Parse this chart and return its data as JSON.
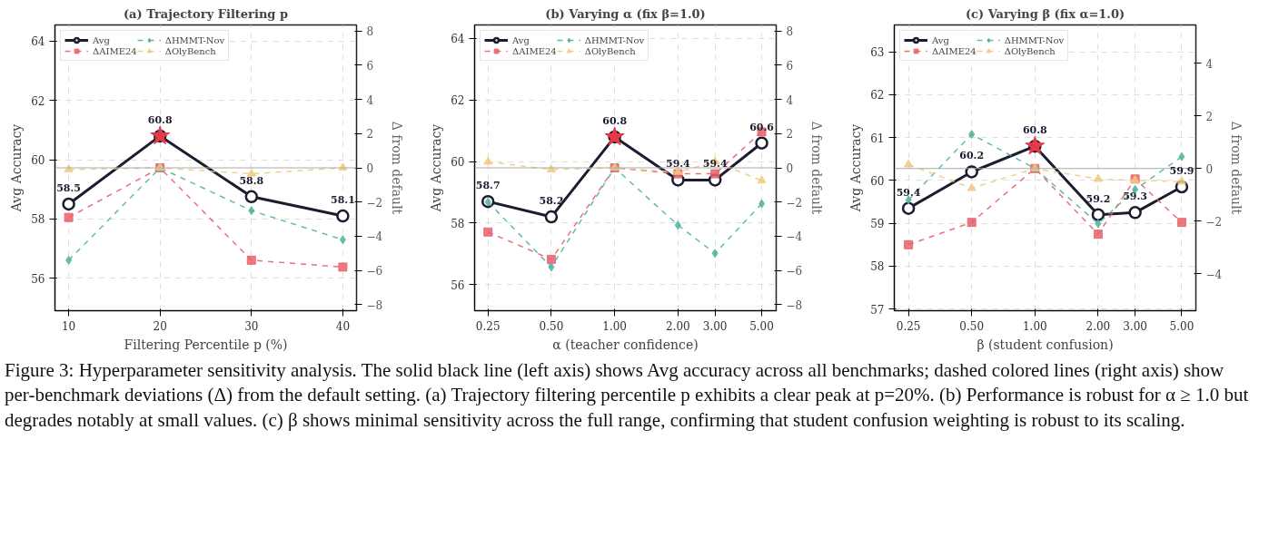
{
  "chart_data": [
    {
      "type": "line",
      "title": "(a) Trajectory Filtering p",
      "xlabel": "Filtering Percentile p (%)",
      "ylabel": "Avg Accuracy",
      "y2label": "Δ from default",
      "x": [
        10,
        20,
        30,
        40
      ],
      "xlim": [
        8.5,
        41.5
      ],
      "xticks": [
        10,
        20,
        30,
        40
      ],
      "ylim": [
        54.9,
        64.55
      ],
      "yticks": [
        56,
        58,
        60,
        62,
        64
      ],
      "y2lim": [
        -8.35,
        8.35
      ],
      "y2ticks": [
        -8,
        -6,
        -4,
        -2,
        0,
        2,
        4,
        6,
        8
      ],
      "grid": true,
      "legend": "top left",
      "ref_lines": [
        {
          "axis": "y2",
          "value": 0,
          "color": "#aaaaaa"
        }
      ],
      "series": [
        {
          "name": "Avg",
          "color": "#1c1c30",
          "values": [
            58.5,
            60.8,
            58.75,
            58.1
          ],
          "marker": "circle",
          "line_style": "solid",
          "value_labels": [
            "58.5",
            "60.8",
            "58.8",
            "58.1"
          ]
        },
        {
          "name": "ΔAIME24",
          "color": "#e8606c",
          "values": [
            -2.9,
            0,
            -5.4,
            -5.8
          ],
          "axis": "y2",
          "marker": "square",
          "line_style": "dashed"
        },
        {
          "name": "ΔHMMT-Nov",
          "color": "#52b3a0",
          "values": [
            -5.4,
            0,
            -2.5,
            -4.2
          ],
          "axis": "y2",
          "marker": "diamond",
          "line_style": "dashed"
        },
        {
          "name": "ΔOlyBench",
          "color": "#eecb7f",
          "values": [
            -0.1,
            0,
            -0.35,
            0
          ],
          "axis": "y2",
          "marker": "triangle",
          "line_style": "dashed"
        },
        {
          "type": "scatter",
          "color": "#e63946",
          "values": [
            null,
            60.8,
            null,
            null
          ],
          "marker": "star"
        }
      ],
      "annotations": [
        "Figure 3: Hyperparameter sensitivity analysis. The solid black line (left axis) shows Avg accuracy across all benchmarks; dashed colored lines (right axis) show per-benchmark deviations (Δ) from the default setting. (a) Trajectory filtering percentile p exhibits a clear peak at p=20%. (b) Performance is robust for α ≥ 1.0 but degrades notably at small values. (c) β shows minimal sensitivity across the full range, confirming that student confusion weighting is robust to its scaling."
      ]
    },
    {
      "type": "line",
      "title": "(b) Varying α (fix β=1.0)",
      "xlabel": "α (teacher confidence)",
      "ylabel": "Avg Accuracy",
      "y2label": "Δ from default",
      "log": "x",
      "x": [
        0.25,
        0.5,
        1,
        2,
        3,
        5
      ],
      "xlim": [
        0.216,
        5.86
      ],
      "xticks": [
        {
          "value": 0.25,
          "label": "0.25"
        },
        {
          "value": 0.5,
          "label": "0.50"
        },
        {
          "value": 1,
          "label": "1.00"
        },
        {
          "value": 2,
          "label": "2.00"
        },
        {
          "value": 3,
          "label": "3.00"
        },
        {
          "value": 5,
          "label": "5.00"
        }
      ],
      "ylim": [
        55.15,
        64.44
      ],
      "yticks": [
        56,
        58,
        60,
        62,
        64
      ],
      "y2lim": [
        -8.35,
        8.35
      ],
      "y2ticks": [
        -8,
        -6,
        -4,
        -2,
        0,
        2,
        4,
        6,
        8
      ],
      "grid": true,
      "legend": "top left",
      "ref_lines": [
        {
          "axis": "y2",
          "value": 0,
          "color": "#aaaaaa"
        }
      ],
      "series": [
        {
          "name": "Avg",
          "color": "#1c1c30",
          "values": [
            58.7,
            58.2,
            60.8,
            59.4,
            59.4,
            60.6
          ],
          "marker": "circle",
          "line_style": "solid",
          "value_labels": [
            "58.7",
            "58.2",
            "60.8",
            "59.4",
            "59.4",
            "60.6"
          ]
        },
        {
          "name": "ΔAIME24",
          "color": "#e8606c",
          "values": [
            -3.75,
            -5.35,
            0,
            -0.35,
            -0.35,
            2.1
          ],
          "axis": "y2",
          "marker": "square",
          "line_style": "dashed"
        },
        {
          "name": "ΔHMMT-Nov",
          "color": "#52b3a0",
          "values": [
            -2.0,
            -5.8,
            0,
            -3.35,
            -5.0,
            -2.1
          ],
          "axis": "y2",
          "marker": "diamond",
          "line_style": "dashed"
        },
        {
          "name": "ΔOlyBench",
          "color": "#eecb7f",
          "values": [
            0.35,
            -0.1,
            0,
            -0.25,
            0.35,
            -0.75
          ],
          "axis": "y2",
          "marker": "triangle",
          "line_style": "dashed"
        },
        {
          "type": "scatter",
          "color": "#e63946",
          "values": [
            null,
            null,
            60.8,
            null,
            null,
            null
          ],
          "marker": "star"
        }
      ]
    },
    {
      "type": "line",
      "title": "(c) Varying β (fix α=1.0)",
      "xlabel": "β (student confusion)",
      "ylabel": "Avg Accuracy",
      "y2label": "Δ from default",
      "log": "x",
      "x": [
        0.25,
        0.5,
        1,
        2,
        3,
        5
      ],
      "xlim": [
        0.214,
        5.84
      ],
      "xticks": [
        {
          "value": 0.25,
          "label": "0.25"
        },
        {
          "value": 0.5,
          "label": "0.50"
        },
        {
          "value": 1,
          "label": "1.00"
        },
        {
          "value": 2,
          "label": "2.00"
        },
        {
          "value": 3,
          "label": "3.00"
        },
        {
          "value": 5,
          "label": "5.00"
        }
      ],
      "ylim": [
        56.96,
        63.63
      ],
      "yticks": [
        57,
        58,
        59,
        60,
        61,
        62,
        63
      ],
      "y2lim": [
        -5.41,
        5.46
      ],
      "y2ticks": [
        -4,
        -2,
        0,
        2,
        4
      ],
      "grid": true,
      "legend": "top left",
      "ref_lines": [
        {
          "axis": "y2",
          "value": 0,
          "color": "#aaaaaa"
        }
      ],
      "series": [
        {
          "name": "Avg",
          "color": "#1c1c30",
          "values": [
            59.35,
            60.2,
            60.8,
            59.2,
            59.25,
            59.85
          ],
          "marker": "circle",
          "line_style": "solid",
          "value_labels": [
            "59.4",
            "60.2",
            "60.8",
            "59.2",
            "59.3",
            "59.9"
          ]
        },
        {
          "name": "ΔAIME24",
          "color": "#e8606c",
          "values": [
            -2.9,
            -2.05,
            0,
            -2.5,
            -0.4,
            -2.05
          ],
          "axis": "y2",
          "marker": "square",
          "line_style": "dashed"
        },
        {
          "name": "ΔHMMT-Nov",
          "color": "#52b3a0",
          "values": [
            -1.2,
            1.3,
            0,
            -2.1,
            -0.8,
            0.45
          ],
          "axis": "y2",
          "marker": "diamond",
          "line_style": "dashed"
        },
        {
          "name": "ΔOlyBench",
          "color": "#eecb7f",
          "values": [
            0.15,
            -0.75,
            0,
            -0.4,
            -0.45,
            -0.5
          ],
          "axis": "y2",
          "marker": "triangle",
          "line_style": "dashed"
        },
        {
          "type": "scatter",
          "color": "#e63946",
          "values": [
            null,
            null,
            60.8,
            null,
            null,
            null
          ],
          "marker": "star"
        }
      ]
    }
  ]
}
